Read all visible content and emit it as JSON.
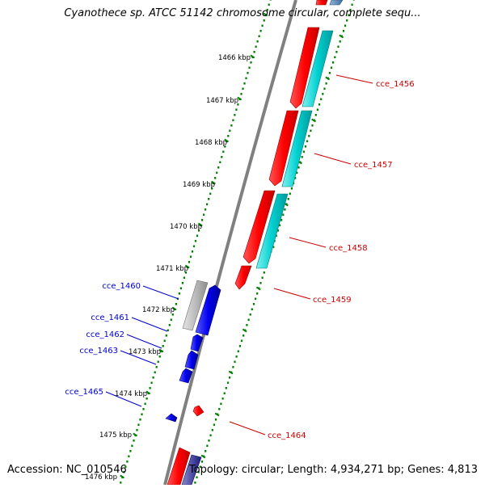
{
  "title": "Cyanothece sp. ATCC 51142 chromosome circular, complete sequ...",
  "footer": {
    "accession": "Accession: NC_010546",
    "info": "Topology: circular; Length: 4,934,271 bp; Genes: 4,813"
  },
  "scale_labels": [
    {
      "label": "1466 kbp",
      "kbp": 1466
    },
    {
      "label": "1467 kbp",
      "kbp": 1467
    },
    {
      "label": "1468 kbp",
      "kbp": 1468
    },
    {
      "label": "1469 kbp",
      "kbp": 1469
    },
    {
      "label": "1470 kbp",
      "kbp": 1470
    },
    {
      "label": "1471 kbp",
      "kbp": 1471
    },
    {
      "label": "1472 kbp",
      "kbp": 1472
    },
    {
      "label": "1473 kbp",
      "kbp": 1473
    },
    {
      "label": "1474 kbp",
      "kbp": 1474
    },
    {
      "label": "1475 kbp",
      "kbp": 1475
    },
    {
      "label": "1476 kbp",
      "kbp": 1476
    }
  ],
  "gene_labels": [
    {
      "name": "cce_1456",
      "strand": "forward"
    },
    {
      "name": "cce_1457",
      "strand": "forward"
    },
    {
      "name": "cce_1458",
      "strand": "forward"
    },
    {
      "name": "cce_1459",
      "strand": "forward"
    },
    {
      "name": "cce_1464",
      "strand": "forward"
    },
    {
      "name": "cce_1460",
      "strand": "reverse"
    },
    {
      "name": "cce_1461",
      "strand": "reverse"
    },
    {
      "name": "cce_1462",
      "strand": "reverse"
    },
    {
      "name": "cce_1463",
      "strand": "reverse"
    },
    {
      "name": "cce_1465",
      "strand": "reverse"
    }
  ],
  "colors": {
    "forward_cds": "#ff0000",
    "forward_gene": "#00c8c8",
    "reverse_cds": "#0000ee",
    "reverse_gene": "#b4b4b4",
    "backbone": "#808080",
    "tick_marks": "#008000",
    "forward_label": "#cc0000",
    "reverse_label": "#0000cc"
  }
}
